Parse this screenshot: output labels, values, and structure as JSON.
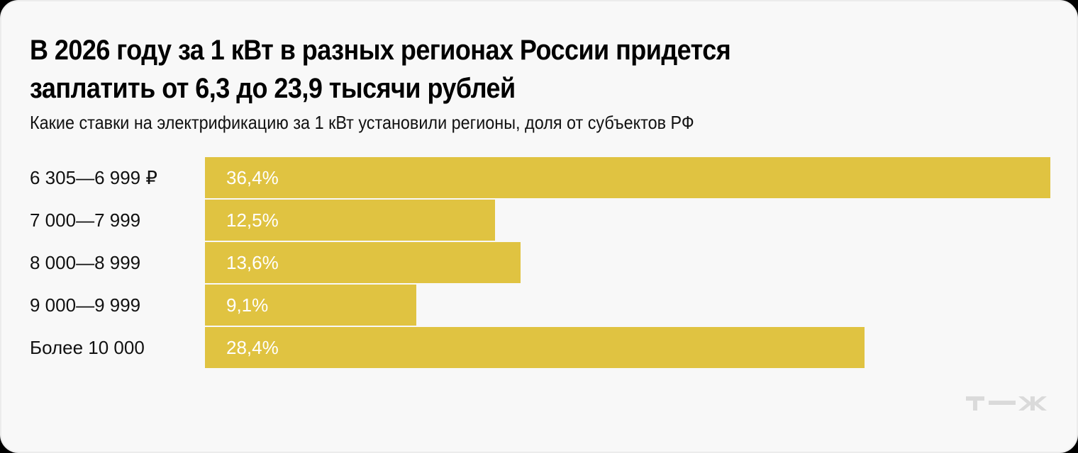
{
  "header": {
    "title": "В 2026 году за 1 кВт в разных регионах России придется заплатить от 6,3 до 23,9 тысячи рублей",
    "subtitle": "Какие ставки на электрификацию за 1 кВт установили регионы, доля от субъектов РФ"
  },
  "rows": [
    {
      "label": "6 305—6 999 ₽",
      "value_label": "36,4%",
      "value": 36.4
    },
    {
      "label": "7 000—7 999",
      "value_label": "12,5%",
      "value": 12.5
    },
    {
      "label": "8 000—8 999",
      "value_label": "13,6%",
      "value": 13.6
    },
    {
      "label": "9 000—9 999",
      "value_label": "9,1%",
      "value": 9.1
    },
    {
      "label": "Более 10 000",
      "value_label": "28,4%",
      "value": 28.4
    }
  ],
  "logo": {
    "text": "т—ж",
    "icon": "tj-logo-icon"
  },
  "colors": {
    "bar": "#e0c341",
    "background": "#f8f8f8",
    "bar_text": "#ffffff",
    "logo": "#dadada"
  },
  "chart_data": {
    "type": "bar",
    "orientation": "horizontal",
    "title": "В 2026 году за 1 кВт в разных регионах России придется заплатить от 6,3 до 23,9 тысячи рублей",
    "subtitle": "Какие ставки на электрификацию за 1 кВт установили регионы, доля от субъектов РФ",
    "categories": [
      "6 305—6 999 ₽",
      "7 000—7 999",
      "8 000—8 999",
      "9 000—9 999",
      "Более 10 000"
    ],
    "values": [
      36.4,
      12.5,
      13.6,
      9.1,
      28.4
    ],
    "value_labels": [
      "36,4%",
      "12,5%",
      "13,6%",
      "9,1%",
      "28,4%"
    ],
    "unit": "%",
    "xlabel": "",
    "ylabel": "",
    "grid": false,
    "legend": null
  }
}
